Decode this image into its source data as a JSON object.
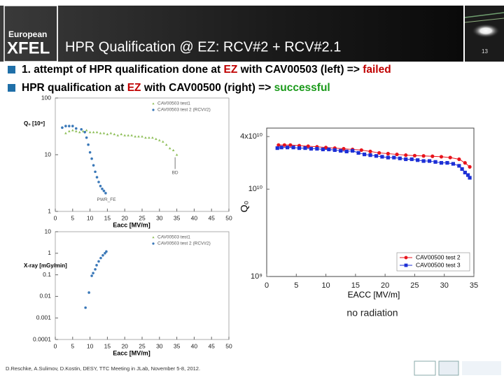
{
  "header": {
    "logo_top": "European",
    "logo_bottom": "XFEL",
    "title": "HPR Qualification @ EZ: RCV#2 + RCV#2.1",
    "page_number": "13"
  },
  "bullets": [
    {
      "segments": [
        {
          "text": "1. attempt of HPR qualification done at ",
          "color": "#000000"
        },
        {
          "text": "EZ",
          "color": "#c00000"
        },
        {
          "text": " with CAV00503 (left)  => ",
          "color": "#000000"
        },
        {
          "text": "failed",
          "color": "#c00000"
        }
      ]
    },
    {
      "segments": [
        {
          "text": "HPR qualification at ",
          "color": "#000000"
        },
        {
          "text": "EZ",
          "color": "#c00000"
        },
        {
          "text": " with CAV00500 (right) => ",
          "color": "#000000"
        },
        {
          "text": "successful",
          "color": "#1a9a1a"
        }
      ]
    }
  ],
  "chart_data": [
    {
      "type": "scatter",
      "ylabel": "Q₀ [10⁹]",
      "xlabel": "Eacc [MV/m]",
      "ylog": true,
      "xlim": [
        0,
        50
      ],
      "xticks": [
        0,
        5,
        10,
        15,
        20,
        25,
        30,
        35,
        40,
        45,
        50
      ],
      "ylim": [
        1,
        100
      ],
      "yticks": [
        1,
        10,
        100
      ],
      "legend": "upper right",
      "annotations": [
        "BD",
        "PWR_FE"
      ],
      "series": [
        {
          "name": "CAV00503 test1",
          "color": "#8fbf5a",
          "marker": "triangle",
          "x": [
            3,
            4,
            5,
            6,
            7,
            8,
            9,
            10,
            11,
            12,
            13,
            14,
            15,
            16,
            17,
            18,
            19,
            20,
            21,
            22,
            23,
            24,
            25,
            26,
            27,
            28,
            29,
            30,
            31,
            32,
            33,
            34,
            35
          ],
          "values": [
            24,
            26,
            27,
            26,
            25,
            26,
            27,
            25,
            25,
            25,
            24,
            24,
            23,
            24,
            23,
            22,
            23,
            22,
            22,
            22,
            21,
            21,
            21,
            20,
            20,
            20,
            19,
            18,
            17,
            15,
            13,
            12,
            10
          ]
        },
        {
          "name": "CAV00503 test 2 (RCV#2)",
          "color": "#3a78b8",
          "marker": "circle",
          "x": [
            2,
            3,
            4,
            5,
            6,
            7.5,
            8.5,
            9,
            9.5,
            10,
            10.5,
            11,
            11.5,
            12,
            12.5,
            13,
            13.5,
            14,
            14.5
          ],
          "values": [
            30,
            32,
            32,
            32,
            29,
            28,
            25,
            20,
            15,
            11,
            8.5,
            6.5,
            5,
            4,
            3.3,
            2.8,
            2.5,
            2.3,
            2.1
          ]
        }
      ]
    },
    {
      "type": "scatter",
      "ylabel": "X-ray [mGy/min]",
      "xlabel": "Eacc [MV/m]",
      "ylog": true,
      "xlim": [
        0,
        50
      ],
      "xticks": [
        0,
        5,
        10,
        15,
        20,
        25,
        30,
        35,
        40,
        45,
        50
      ],
      "ylim": [
        0.0001,
        10
      ],
      "yticks": [
        0.0001,
        0.001,
        0.01,
        0.1,
        1,
        10
      ],
      "legend": "upper right",
      "series": [
        {
          "name": "CAV00503 test1",
          "color": "#8fbf5a",
          "marker": "triangle",
          "x": [],
          "values": []
        },
        {
          "name": "CAV00503 test 2 (RCV#2)",
          "color": "#3a78b8",
          "marker": "circle",
          "x": [
            8.7,
            9.7,
            10.5,
            10.9,
            11.5,
            11.9,
            12.5,
            13.1,
            13.7,
            14.3,
            14.7
          ],
          "values": [
            0.003,
            0.015,
            0.09,
            0.12,
            0.18,
            0.28,
            0.42,
            0.6,
            0.8,
            1.0,
            1.2
          ]
        }
      ]
    },
    {
      "type": "line",
      "ylabel": "Q₀",
      "xlabel": "EACC [MV/m]",
      "ylog": true,
      "xlim": [
        0,
        35
      ],
      "xticks": [
        0,
        5,
        10,
        15,
        20,
        25,
        30,
        35
      ],
      "ylim": [
        1000000000,
        50000000000
      ],
      "yticks": [
        {
          "value": 1000000000,
          "label": "10⁹"
        },
        {
          "value": 10000000000,
          "label": "10¹⁰"
        },
        {
          "value": 40000000000,
          "label": "4x10¹⁰"
        }
      ],
      "legend": "lower right",
      "annotations": [
        "no radiation"
      ],
      "series": [
        {
          "name": "CAV00500 test 2",
          "color": "#e8141c",
          "marker": "circle",
          "x": [
            2,
            3,
            4,
            5.5,
            7,
            8.5,
            10,
            11.5,
            13,
            14.5,
            16,
            17.5,
            19,
            20.5,
            22,
            23.5,
            25,
            26.5,
            28,
            29.5,
            31,
            32.5,
            33.5,
            34.3
          ],
          "values": [
            32000000000,
            32000000000,
            32000000000,
            31500000000,
            31000000000,
            30500000000,
            30000000000,
            29500000000,
            29000000000,
            28500000000,
            28000000000,
            27000000000,
            26000000000,
            25500000000,
            25000000000,
            24500000000,
            24200000000,
            24000000000,
            23800000000,
            23500000000,
            23000000000,
            22000000000,
            20000000000,
            18000000000
          ]
        },
        {
          "name": "CAV00500 test 3",
          "color": "#1c2fd6",
          "marker": "square",
          "x": [
            1.8,
            2.5,
            3.5,
            4.5,
            5.5,
            6.5,
            7.5,
            8.5,
            9.5,
            10.5,
            11.5,
            12.5,
            13.5,
            14.5,
            15.5,
            16.5,
            17.5,
            18.5,
            19.5,
            20.5,
            21.5,
            22.5,
            23.5,
            24.5,
            25.5,
            26.5,
            27.5,
            28.5,
            29.5,
            30.5,
            31.5,
            32.5,
            33,
            33.5,
            34,
            34.3
          ],
          "values": [
            29500000000,
            30000000000,
            30000000000,
            30000000000,
            29500000000,
            29500000000,
            29000000000,
            29000000000,
            28500000000,
            28500000000,
            28000000000,
            27500000000,
            27000000000,
            27500000000,
            26000000000,
            25000000000,
            24500000000,
            24000000000,
            23500000000,
            23000000000,
            23000000000,
            22500000000,
            22000000000,
            22000000000,
            21500000000,
            21000000000,
            21000000000,
            20500000000,
            20000000000,
            20000000000,
            19500000000,
            18500000000,
            17000000000,
            15500000000,
            14500000000,
            13500000000
          ]
        }
      ]
    }
  ],
  "footer": "D.Reschke, A.Sulimov, D.Kostin, DESY, TTC Meeting in JLab, November 5-8, 2012."
}
